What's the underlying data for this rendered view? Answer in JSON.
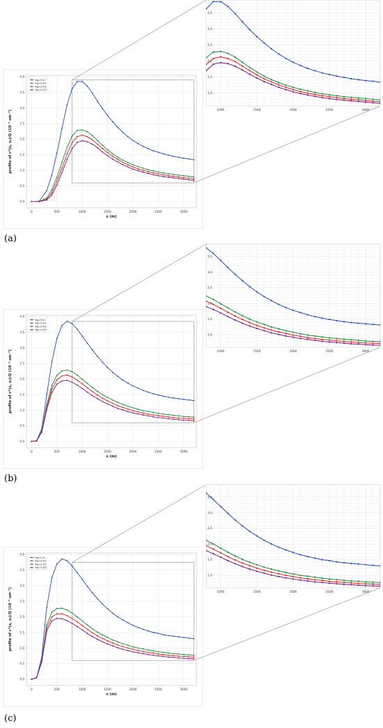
{
  "chart_data": [
    {
      "type": "line",
      "panel_label": "(a)",
      "xlabel": "x (m)",
      "ylabel": "profile of c*(x, z₀)/Q (10⁻³ sm⁻³)",
      "xlim": [
        -100,
        3250
      ],
      "ylim": [
        -0.2,
        4.05
      ],
      "x_ticks": [
        0,
        500,
        1000,
        1500,
        2000,
        2500,
        3000
      ],
      "y_ticks": [
        0.0,
        0.5,
        1.0,
        1.5,
        2.0,
        2.5,
        3.0,
        3.5,
        4.0
      ],
      "zoom_x_ticks": [
        1000,
        1500,
        2000,
        2500,
        3000
      ],
      "zoom_y_ticks": [
        1.0,
        1.5,
        2.0,
        2.5,
        3.0,
        3.5
      ],
      "zoom_xlim": [
        800,
        3200
      ],
      "zoom_ylim": [
        0.6,
        3.9
      ],
      "grid": true,
      "legend_position": "top-left",
      "x": [
        0,
        150,
        300,
        400,
        500,
        600,
        700,
        800,
        900,
        1000,
        1100,
        1200,
        1300,
        1400,
        1500,
        1600,
        1700,
        1800,
        1900,
        2000,
        2100,
        2200,
        2300,
        2400,
        2500,
        2600,
        2700,
        2800,
        2900,
        3000,
        3100,
        3200
      ],
      "series": [
        {
          "name": "Vg=0.0",
          "color": "#1f4fb4",
          "values": [
            0,
            0.01,
            0.35,
            0.85,
            1.55,
            2.35,
            3.1,
            3.62,
            3.85,
            3.85,
            3.7,
            3.48,
            3.22,
            2.98,
            2.76,
            2.56,
            2.38,
            2.22,
            2.08,
            1.96,
            1.86,
            1.77,
            1.7,
            1.63,
            1.58,
            1.53,
            1.49,
            1.45,
            1.42,
            1.39,
            1.37,
            1.34
          ]
        },
        {
          "name": "Vg=0.01",
          "color": "#1f8a3a",
          "values": [
            0,
            0.0,
            0.12,
            0.38,
            0.78,
            1.26,
            1.74,
            2.1,
            2.28,
            2.3,
            2.24,
            2.12,
            1.96,
            1.8,
            1.66,
            1.53,
            1.42,
            1.33,
            1.25,
            1.18,
            1.12,
            1.07,
            1.02,
            0.98,
            0.95,
            0.92,
            0.89,
            0.87,
            0.85,
            0.83,
            0.81,
            0.79
          ]
        },
        {
          "name": "Vg=0.02",
          "color": "#e0201b",
          "values": [
            0,
            0.0,
            0.08,
            0.29,
            0.65,
            1.08,
            1.53,
            1.89,
            2.08,
            2.13,
            2.08,
            1.98,
            1.84,
            1.7,
            1.57,
            1.45,
            1.35,
            1.26,
            1.18,
            1.11,
            1.05,
            1.0,
            0.96,
            0.92,
            0.89,
            0.86,
            0.83,
            0.81,
            0.79,
            0.77,
            0.75,
            0.73
          ]
        },
        {
          "name": "Vg=0.03",
          "color": "#7a1a80",
          "values": [
            0,
            0.0,
            0.05,
            0.21,
            0.53,
            0.93,
            1.35,
            1.7,
            1.9,
            1.95,
            1.92,
            1.84,
            1.72,
            1.59,
            1.47,
            1.36,
            1.27,
            1.18,
            1.11,
            1.04,
            0.99,
            0.94,
            0.9,
            0.86,
            0.83,
            0.8,
            0.78,
            0.76,
            0.74,
            0.72,
            0.7,
            0.68
          ]
        }
      ]
    },
    {
      "type": "line",
      "panel_label": "(b)",
      "xlabel": "x (m)",
      "ylabel": "profile of c*(x, z₀)/Q (10⁻³ sm⁻³)",
      "xlim": [
        -100,
        3250
      ],
      "ylim": [
        -0.2,
        4.05
      ],
      "x_ticks": [
        0,
        500,
        1000,
        1500,
        2000,
        2500,
        3000
      ],
      "y_ticks": [
        0.0,
        0.5,
        1.0,
        1.5,
        2.0,
        2.5,
        3.0,
        3.5,
        4.0
      ],
      "zoom_x_ticks": [
        1000,
        1500,
        2000,
        2500,
        3000
      ],
      "zoom_y_ticks": [
        1.0,
        1.5,
        2.0,
        2.5,
        3.0,
        3.5
      ],
      "zoom_xlim": [
        800,
        3200
      ],
      "zoom_ylim": [
        0.6,
        3.9
      ],
      "grid": true,
      "legend_position": "top-left",
      "x": [
        0,
        100,
        200,
        300,
        400,
        500,
        600,
        700,
        800,
        900,
        1000,
        1100,
        1200,
        1300,
        1400,
        1500,
        1600,
        1700,
        1800,
        1900,
        2000,
        2100,
        2200,
        2300,
        2400,
        2500,
        2600,
        2700,
        2800,
        2900,
        3000,
        3100,
        3200
      ],
      "series": [
        {
          "name": "Vg=0.0",
          "color": "#1f4fb4",
          "values": [
            0,
            0.02,
            0.4,
            1.5,
            2.55,
            3.3,
            3.72,
            3.86,
            3.78,
            3.6,
            3.38,
            3.15,
            2.93,
            2.73,
            2.54,
            2.37,
            2.22,
            2.09,
            1.97,
            1.87,
            1.78,
            1.71,
            1.64,
            1.58,
            1.53,
            1.49,
            1.45,
            1.42,
            1.39,
            1.37,
            1.35,
            1.33,
            1.31
          ]
        },
        {
          "name": "Vg=0.01",
          "color": "#1f8a3a",
          "values": [
            0,
            0.02,
            0.33,
            1.18,
            1.8,
            2.12,
            2.26,
            2.29,
            2.24,
            2.13,
            1.99,
            1.86,
            1.73,
            1.61,
            1.5,
            1.41,
            1.33,
            1.25,
            1.19,
            1.13,
            1.08,
            1.03,
            0.99,
            0.96,
            0.93,
            0.9,
            0.88,
            0.86,
            0.84,
            0.82,
            0.8,
            0.79,
            0.78
          ]
        },
        {
          "name": "Vg=0.02",
          "color": "#e0201b",
          "values": [
            0,
            0.02,
            0.31,
            1.1,
            1.68,
            1.98,
            2.1,
            2.13,
            2.07,
            1.97,
            1.85,
            1.72,
            1.6,
            1.49,
            1.39,
            1.3,
            1.22,
            1.15,
            1.09,
            1.04,
            0.99,
            0.95,
            0.91,
            0.88,
            0.85,
            0.83,
            0.81,
            0.79,
            0.77,
            0.75,
            0.74,
            0.73,
            0.72
          ]
        },
        {
          "name": "Vg=0.03",
          "color": "#7a1a80",
          "values": [
            0,
            0.02,
            0.29,
            1.03,
            1.57,
            1.84,
            1.94,
            1.96,
            1.9,
            1.81,
            1.7,
            1.58,
            1.47,
            1.37,
            1.28,
            1.2,
            1.13,
            1.06,
            1.01,
            0.96,
            0.92,
            0.88,
            0.85,
            0.82,
            0.79,
            0.77,
            0.75,
            0.73,
            0.71,
            0.7,
            0.68,
            0.67,
            0.66
          ]
        }
      ]
    },
    {
      "type": "line",
      "panel_label": "(c)",
      "xlabel": "x (m)",
      "ylabel": "profile of c*(x, z₀)/Q (10⁻³ sm⁻³)",
      "xlim": [
        -100,
        3250
      ],
      "ylim": [
        -0.2,
        4.05
      ],
      "x_ticks": [
        0,
        500,
        1000,
        1500,
        2000,
        2500,
        3000
      ],
      "y_ticks": [
        0.0,
        0.5,
        1.0,
        1.5,
        2.0,
        2.5,
        3.0,
        3.5,
        4.0
      ],
      "zoom_x_ticks": [
        1000,
        1500,
        2000,
        2500,
        3000
      ],
      "zoom_y_ticks": [
        1.0,
        1.5,
        2.0,
        2.5,
        3.0,
        3.5
      ],
      "zoom_xlim": [
        800,
        3200
      ],
      "zoom_ylim": [
        0.6,
        3.9
      ],
      "grid": true,
      "legend_position": "top-left",
      "x": [
        0,
        100,
        200,
        300,
        400,
        500,
        600,
        700,
        800,
        900,
        1000,
        1100,
        1200,
        1300,
        1400,
        1500,
        1600,
        1700,
        1800,
        1900,
        2000,
        2100,
        2200,
        2300,
        2400,
        2500,
        2600,
        2700,
        2800,
        2900,
        3000,
        3100,
        3200
      ],
      "series": [
        {
          "name": "Vg=0.0",
          "color": "#1f4fb4",
          "values": [
            0,
            0.05,
            0.7,
            2.3,
            3.25,
            3.7,
            3.86,
            3.8,
            3.63,
            3.42,
            3.2,
            2.98,
            2.77,
            2.58,
            2.41,
            2.26,
            2.12,
            2.0,
            1.9,
            1.81,
            1.73,
            1.66,
            1.6,
            1.55,
            1.5,
            1.47,
            1.43,
            1.4,
            1.38,
            1.36,
            1.34,
            1.32,
            1.3
          ]
        },
        {
          "name": "Vg=0.01",
          "color": "#1f8a3a",
          "values": [
            0,
            0.05,
            0.6,
            1.75,
            2.15,
            2.27,
            2.28,
            2.22,
            2.12,
            2.0,
            1.87,
            1.74,
            1.62,
            1.51,
            1.42,
            1.34,
            1.26,
            1.2,
            1.14,
            1.09,
            1.04,
            1.0,
            0.97,
            0.94,
            0.91,
            0.88,
            0.86,
            0.84,
            0.82,
            0.81,
            0.79,
            0.78,
            0.77
          ]
        },
        {
          "name": "Vg=0.02",
          "color": "#e0201b",
          "values": [
            0,
            0.05,
            0.57,
            1.64,
            2.0,
            2.1,
            2.1,
            2.04,
            1.95,
            1.84,
            1.72,
            1.6,
            1.49,
            1.39,
            1.31,
            1.23,
            1.16,
            1.1,
            1.05,
            1.0,
            0.96,
            0.92,
            0.89,
            0.86,
            0.84,
            0.81,
            0.79,
            0.77,
            0.76,
            0.74,
            0.73,
            0.72,
            0.71
          ]
        },
        {
          "name": "Vg=0.03",
          "color": "#7a1a80",
          "values": [
            0,
            0.05,
            0.54,
            1.55,
            1.87,
            1.95,
            1.94,
            1.88,
            1.79,
            1.69,
            1.58,
            1.47,
            1.37,
            1.28,
            1.2,
            1.13,
            1.07,
            1.01,
            0.96,
            0.92,
            0.88,
            0.85,
            0.82,
            0.79,
            0.77,
            0.75,
            0.73,
            0.71,
            0.7,
            0.68,
            0.67,
            0.66,
            0.65
          ]
        }
      ]
    }
  ]
}
